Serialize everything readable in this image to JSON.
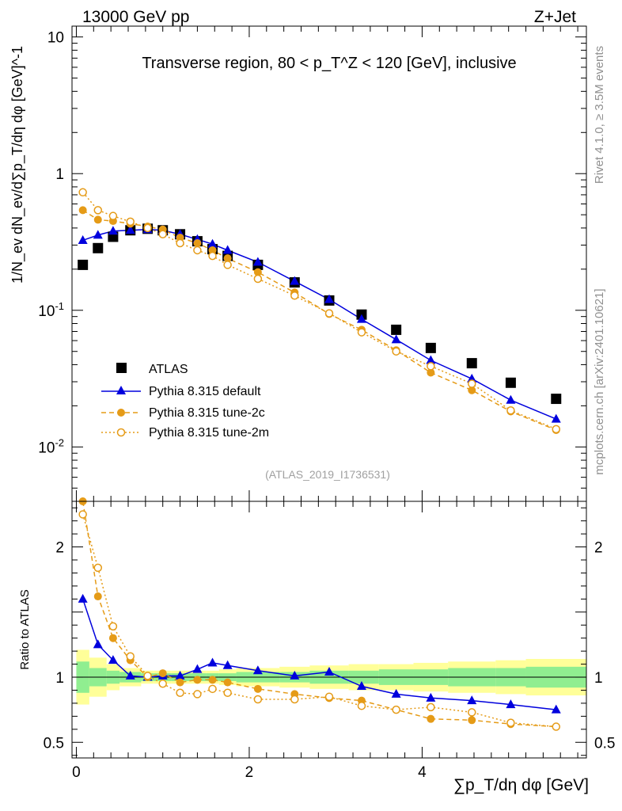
{
  "header": {
    "beam": "13000 GeV pp",
    "process": "Z+Jet",
    "region_title": "Transverse region, 80 < p_T^Z < 120 [GeV], inclusive",
    "analysis_id": "(ATLAS_2019_I1736531)",
    "side_label_top": "Rivet 4.1.0, ≥ 3.5M events",
    "side_label_bottom": "mcplots.cern.ch [arXiv:2401.10621]"
  },
  "chart_data": [
    {
      "id": "main",
      "type": "scatter",
      "y_scale": "log",
      "ylim": [
        0.004,
        12
      ],
      "xlim": [
        -0.05,
        5.9
      ],
      "ylabel": "1/N_ev dN_ev/d∑p_T/dη dφ [GeV]^-1",
      "y_ticks": [
        {
          "value": 0.01,
          "label": "10^-2"
        },
        {
          "value": 0.1,
          "label": "10^-1"
        },
        {
          "value": 1,
          "label": "1"
        },
        {
          "value": 10,
          "label": "10"
        }
      ],
      "x": [
        0.075,
        0.25,
        0.425,
        0.625,
        0.825,
        1.0,
        1.2,
        1.4,
        1.575,
        1.75,
        2.1,
        2.525,
        2.925,
        3.3,
        3.7,
        4.1,
        4.575,
        5.025,
        5.55
      ],
      "series": [
        {
          "name": "ATLAS",
          "color": "#000000",
          "marker": "square",
          "values": [
            0.215,
            0.285,
            0.345,
            0.385,
            0.395,
            0.385,
            0.36,
            0.32,
            0.28,
            0.25,
            0.215,
            0.16,
            0.118,
            0.093,
            0.072,
            0.053,
            0.041,
            0.0295,
            0.0225
          ]
        },
        {
          "name": "Pythia 8.315 default",
          "color": "#0000dd",
          "marker": "triangle",
          "line": "solid",
          "values": [
            0.325,
            0.355,
            0.38,
            0.385,
            0.39,
            0.385,
            0.36,
            0.33,
            0.305,
            0.275,
            0.225,
            0.163,
            0.12,
            0.086,
            0.061,
            0.043,
            0.0315,
            0.022,
            0.016
          ]
        },
        {
          "name": "Pythia 8.315 tune-2c",
          "color": "#e59b17",
          "marker": "filled-circle",
          "line": "dashed",
          "values": [
            0.54,
            0.46,
            0.45,
            0.43,
            0.41,
            0.39,
            0.34,
            0.31,
            0.275,
            0.24,
            0.19,
            0.135,
            0.094,
            0.072,
            0.051,
            0.035,
            0.026,
            0.0182,
            0.0133
          ]
        },
        {
          "name": "Pythia 8.315 tune-2m",
          "color": "#e59b17",
          "marker": "open-circle",
          "line": "dotted",
          "values": [
            0.73,
            0.54,
            0.49,
            0.445,
            0.4,
            0.36,
            0.31,
            0.275,
            0.25,
            0.215,
            0.17,
            0.128,
            0.095,
            0.069,
            0.05,
            0.039,
            0.029,
            0.0185,
            0.0135
          ]
        }
      ],
      "legend": [
        "ATLAS",
        "Pythia 8.315 default",
        "Pythia 8.315 tune-2c",
        "Pythia 8.315 tune-2m"
      ],
      "legend_position": "bottom-left"
    },
    {
      "id": "ratio",
      "type": "scatter",
      "ylim": [
        0.38,
        2.35
      ],
      "xlim": [
        -0.05,
        5.9
      ],
      "ylabel": "Ratio to ATLAS",
      "xlabel": "∑p_T/dη dφ [GeV]",
      "x_ticks": [
        0,
        2,
        4
      ],
      "y_ticks": [
        {
          "value": 0.5,
          "label": "0.5"
        },
        {
          "value": 1,
          "label": "1"
        },
        {
          "value": 2,
          "label": "2"
        }
      ],
      "x": [
        0.075,
        0.25,
        0.425,
        0.625,
        0.825,
        1.0,
        1.2,
        1.4,
        1.575,
        1.75,
        2.1,
        2.525,
        2.925,
        3.3,
        3.7,
        4.1,
        4.575,
        5.025,
        5.55
      ],
      "band_edges": [
        0.0,
        0.15,
        0.35,
        0.5,
        0.75,
        0.9,
        1.1,
        1.3,
        1.5,
        1.65,
        1.85,
        2.35,
        2.7,
        3.15,
        3.5,
        3.9,
        4.3,
        4.85,
        5.2,
        5.9
      ],
      "band_outer": [
        0.21,
        0.15,
        0.1,
        0.07,
        0.05,
        0.05,
        0.05,
        0.05,
        0.05,
        0.06,
        0.07,
        0.08,
        0.09,
        0.1,
        0.1,
        0.11,
        0.12,
        0.13,
        0.14
      ],
      "band_inner": [
        0.12,
        0.07,
        0.05,
        0.04,
        0.03,
        0.03,
        0.03,
        0.03,
        0.03,
        0.03,
        0.04,
        0.04,
        0.05,
        0.05,
        0.06,
        0.06,
        0.07,
        0.07,
        0.08
      ],
      "series": [
        {
          "name": "Pythia 8.315 default",
          "color": "#0000dd",
          "marker": "triangle",
          "line": "solid",
          "values": [
            1.6,
            1.25,
            1.13,
            1.01,
            1.0,
            1.01,
            1.01,
            1.06,
            1.11,
            1.09,
            1.05,
            1.01,
            1.04,
            0.93,
            0.87,
            0.84,
            0.82,
            0.79,
            0.75
          ]
        },
        {
          "name": "Pythia 8.315 tune-2c",
          "color": "#e59b17",
          "marker": "filled-circle",
          "line": "dashed",
          "values": [
            2.35,
            1.62,
            1.3,
            1.13,
            1.0,
            1.03,
            0.96,
            0.98,
            0.98,
            0.96,
            0.91,
            0.87,
            0.84,
            0.82,
            0.75,
            0.68,
            0.67,
            0.64,
            0.62
          ]
        },
        {
          "name": "Pythia 8.315 tune-2m",
          "color": "#e59b17",
          "marker": "open-circle",
          "line": "dotted",
          "values": [
            2.25,
            1.84,
            1.39,
            1.16,
            1.01,
            0.95,
            0.88,
            0.87,
            0.91,
            0.88,
            0.83,
            0.83,
            0.85,
            0.78,
            0.75,
            0.77,
            0.73,
            0.65,
            0.62
          ]
        }
      ]
    }
  ]
}
